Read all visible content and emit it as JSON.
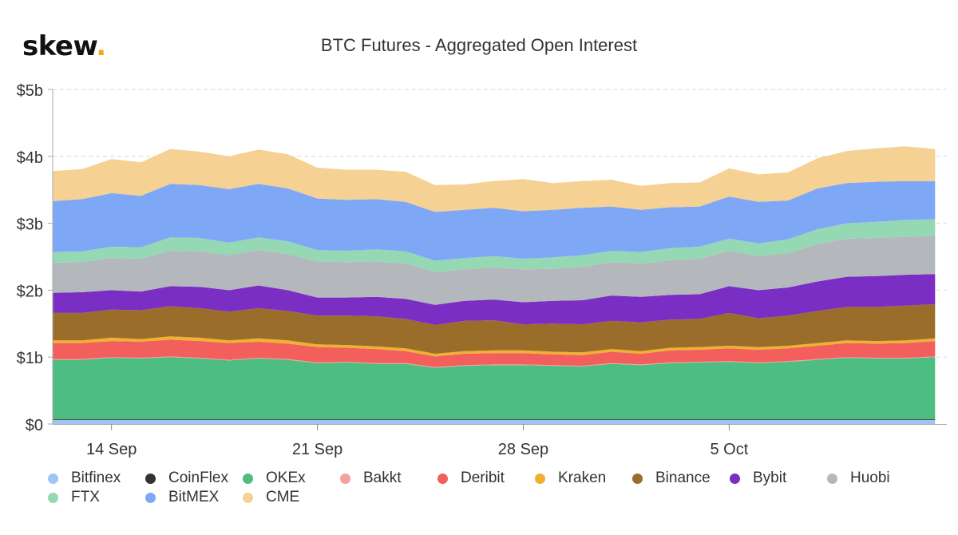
{
  "brand": {
    "name": "skew",
    "dot": "."
  },
  "chart_data": {
    "type": "area",
    "stacked": true,
    "title": "BTC Futures - Aggregated Open Interest",
    "xlabel": "",
    "ylabel": "",
    "ylim": [
      0,
      5
    ],
    "y_unit": "billion USD",
    "y_ticks": [
      0,
      1,
      2,
      3,
      4,
      5
    ],
    "y_tick_labels": [
      "$0",
      "$1b",
      "$2b",
      "$3b",
      "$4b",
      "$5b"
    ],
    "x_ticks": [
      {
        "day": 2,
        "label": "14 Sep"
      },
      {
        "day": 9,
        "label": "21 Sep"
      },
      {
        "day": 16,
        "label": "28 Sep"
      },
      {
        "day": 23,
        "label": "5 Oct"
      }
    ],
    "x_days": [
      0,
      1,
      2,
      3,
      4,
      5,
      6,
      7,
      8,
      9,
      10,
      11,
      12,
      13,
      14,
      15,
      16,
      17,
      18,
      19,
      20,
      21,
      22,
      23,
      24,
      25,
      26,
      27,
      28,
      29,
      30
    ],
    "x_range": [
      0,
      30.4
    ],
    "series": [
      {
        "name": "Bitfinex",
        "color": "#9ec5f4",
        "values": [
          0.06,
          0.06,
          0.06,
          0.06,
          0.06,
          0.06,
          0.06,
          0.06,
          0.06,
          0.06,
          0.06,
          0.06,
          0.06,
          0.06,
          0.06,
          0.06,
          0.06,
          0.06,
          0.06,
          0.06,
          0.06,
          0.06,
          0.06,
          0.06,
          0.06,
          0.06,
          0.06,
          0.06,
          0.06,
          0.06,
          0.06
        ]
      },
      {
        "name": "CoinFlex",
        "color": "#333333",
        "values": [
          0.01,
          0.01,
          0.01,
          0.01,
          0.01,
          0.01,
          0.01,
          0.01,
          0.01,
          0.01,
          0.01,
          0.01,
          0.01,
          0.01,
          0.01,
          0.01,
          0.01,
          0.01,
          0.01,
          0.01,
          0.01,
          0.01,
          0.01,
          0.01,
          0.01,
          0.01,
          0.01,
          0.01,
          0.01,
          0.01,
          0.01
        ]
      },
      {
        "name": "OKEx",
        "color": "#4ebd82",
        "values": [
          0.89,
          0.89,
          0.92,
          0.91,
          0.93,
          0.91,
          0.88,
          0.91,
          0.89,
          0.84,
          0.85,
          0.83,
          0.83,
          0.77,
          0.8,
          0.81,
          0.81,
          0.8,
          0.79,
          0.83,
          0.81,
          0.84,
          0.85,
          0.86,
          0.84,
          0.86,
          0.89,
          0.92,
          0.91,
          0.91,
          0.93
        ]
      },
      {
        "name": "Bakkt",
        "color": "#f4a0a0",
        "values": [
          0.01,
          0.01,
          0.01,
          0.01,
          0.01,
          0.01,
          0.01,
          0.01,
          0.01,
          0.01,
          0.01,
          0.01,
          0.01,
          0.01,
          0.01,
          0.01,
          0.01,
          0.01,
          0.01,
          0.01,
          0.01,
          0.01,
          0.01,
          0.01,
          0.01,
          0.01,
          0.01,
          0.01,
          0.01,
          0.01,
          0.01
        ]
      },
      {
        "name": "Deribit",
        "color": "#f25f5c",
        "values": [
          0.24,
          0.24,
          0.24,
          0.24,
          0.25,
          0.25,
          0.25,
          0.24,
          0.23,
          0.23,
          0.21,
          0.21,
          0.18,
          0.16,
          0.17,
          0.17,
          0.17,
          0.16,
          0.16,
          0.17,
          0.16,
          0.18,
          0.18,
          0.19,
          0.19,
          0.19,
          0.2,
          0.21,
          0.21,
          0.22,
          0.23
        ]
      },
      {
        "name": "Kraken",
        "color": "#f0b030",
        "values": [
          0.04,
          0.04,
          0.05,
          0.04,
          0.05,
          0.05,
          0.04,
          0.05,
          0.05,
          0.04,
          0.04,
          0.04,
          0.04,
          0.04,
          0.04,
          0.04,
          0.04,
          0.04,
          0.04,
          0.04,
          0.04,
          0.04,
          0.04,
          0.04,
          0.04,
          0.04,
          0.04,
          0.04,
          0.04,
          0.04,
          0.04
        ]
      },
      {
        "name": "Binance",
        "color": "#9a6e2a",
        "values": [
          0.41,
          0.41,
          0.42,
          0.43,
          0.45,
          0.44,
          0.43,
          0.45,
          0.44,
          0.43,
          0.44,
          0.45,
          0.44,
          0.43,
          0.45,
          0.45,
          0.39,
          0.42,
          0.42,
          0.42,
          0.43,
          0.42,
          0.42,
          0.49,
          0.43,
          0.45,
          0.48,
          0.5,
          0.51,
          0.52,
          0.51
        ]
      },
      {
        "name": "Bybit",
        "color": "#7b2ec4",
        "values": [
          0.3,
          0.31,
          0.29,
          0.28,
          0.3,
          0.32,
          0.32,
          0.34,
          0.31,
          0.27,
          0.27,
          0.29,
          0.3,
          0.3,
          0.3,
          0.31,
          0.33,
          0.34,
          0.36,
          0.38,
          0.38,
          0.37,
          0.37,
          0.4,
          0.42,
          0.42,
          0.44,
          0.45,
          0.46,
          0.46,
          0.45
        ]
      },
      {
        "name": "Huobi",
        "color": "#b4b8bc",
        "values": [
          0.45,
          0.45,
          0.48,
          0.49,
          0.53,
          0.53,
          0.52,
          0.53,
          0.54,
          0.54,
          0.53,
          0.53,
          0.53,
          0.49,
          0.47,
          0.48,
          0.49,
          0.48,
          0.5,
          0.5,
          0.5,
          0.52,
          0.53,
          0.53,
          0.51,
          0.51,
          0.56,
          0.57,
          0.57,
          0.57,
          0.57
        ]
      },
      {
        "name": "FTX",
        "color": "#94d8b4",
        "values": [
          0.16,
          0.16,
          0.17,
          0.17,
          0.2,
          0.2,
          0.19,
          0.19,
          0.19,
          0.17,
          0.17,
          0.18,
          0.18,
          0.17,
          0.17,
          0.17,
          0.16,
          0.17,
          0.17,
          0.17,
          0.17,
          0.18,
          0.18,
          0.18,
          0.19,
          0.21,
          0.22,
          0.23,
          0.24,
          0.25,
          0.25
        ]
      },
      {
        "name": "BitMEX",
        "color": "#7ea8f6",
        "values": [
          0.76,
          0.78,
          0.8,
          0.77,
          0.8,
          0.79,
          0.8,
          0.8,
          0.79,
          0.77,
          0.76,
          0.75,
          0.74,
          0.73,
          0.72,
          0.72,
          0.71,
          0.71,
          0.71,
          0.66,
          0.63,
          0.61,
          0.6,
          0.63,
          0.62,
          0.58,
          0.61,
          0.6,
          0.6,
          0.58,
          0.57
        ]
      },
      {
        "name": "CME",
        "color": "#f5d193",
        "values": [
          0.45,
          0.45,
          0.51,
          0.5,
          0.52,
          0.5,
          0.49,
          0.51,
          0.51,
          0.46,
          0.45,
          0.44,
          0.45,
          0.4,
          0.38,
          0.4,
          0.48,
          0.4,
          0.4,
          0.4,
          0.36,
          0.36,
          0.36,
          0.42,
          0.41,
          0.42,
          0.45,
          0.48,
          0.5,
          0.52,
          0.48
        ]
      }
    ]
  }
}
